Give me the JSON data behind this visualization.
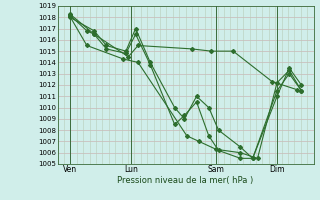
{
  "xlabel": "Pression niveau de la mer( hPa )",
  "bg_color": "#d0eeea",
  "grid_color_h": "#d0b0b0",
  "grid_color_v": "#c8d8c8",
  "line_color": "#2d6e2d",
  "ylim": [
    1005,
    1019
  ],
  "yticks": [
    1005,
    1006,
    1007,
    1008,
    1009,
    1010,
    1011,
    1012,
    1013,
    1014,
    1015,
    1016,
    1017,
    1018,
    1019
  ],
  "xtick_labels": [
    "Ven",
    "Lun",
    "Sam",
    "Dim"
  ],
  "xtick_positions": [
    0.5,
    3.0,
    6.5,
    9.0
  ],
  "vline_positions": [
    0.5,
    3.0,
    6.5,
    9.0
  ],
  "xlim": [
    0.0,
    10.5
  ],
  "series": [
    {
      "x": [
        0.5,
        1.5,
        2.0,
        2.8,
        3.2,
        3.8,
        4.8,
        5.2,
        5.7,
        6.2,
        6.6,
        7.5,
        8.0,
        9.0,
        9.5,
        10.0
      ],
      "y": [
        1018.0,
        1016.8,
        1015.5,
        1015.0,
        1017.0,
        1014.0,
        1010.0,
        1009.0,
        1011.0,
        1010.0,
        1008.0,
        1006.5,
        1005.5,
        1011.0,
        1013.5,
        1012.0
      ]
    },
    {
      "x": [
        0.5,
        1.5,
        2.0,
        2.8,
        3.2,
        3.8,
        4.8,
        5.2,
        5.7,
        6.2,
        6.6,
        7.5,
        8.0,
        9.0,
        9.5,
        10.0
      ],
      "y": [
        1018.3,
        1016.5,
        1015.2,
        1014.8,
        1016.5,
        1013.8,
        1008.5,
        1009.3,
        1010.5,
        1007.5,
        1006.2,
        1005.5,
        1005.5,
        1011.5,
        1013.0,
        1011.5
      ]
    },
    {
      "x": [
        0.5,
        1.2,
        1.5,
        2.9,
        3.3,
        5.5,
        6.3,
        7.2,
        8.8,
        9.8
      ],
      "y": [
        1018.2,
        1016.8,
        1016.5,
        1014.5,
        1015.5,
        1015.2,
        1015.0,
        1015.0,
        1012.3,
        1011.6
      ]
    },
    {
      "x": [
        0.5,
        1.2,
        2.7,
        3.3,
        5.3,
        5.8,
        6.5,
        7.5,
        8.2,
        9.0,
        9.5,
        10.0
      ],
      "y": [
        1018.1,
        1015.5,
        1014.3,
        1014.0,
        1007.5,
        1007.0,
        1006.3,
        1006.0,
        1005.5,
        1012.2,
        1013.3,
        1011.5
      ]
    }
  ]
}
